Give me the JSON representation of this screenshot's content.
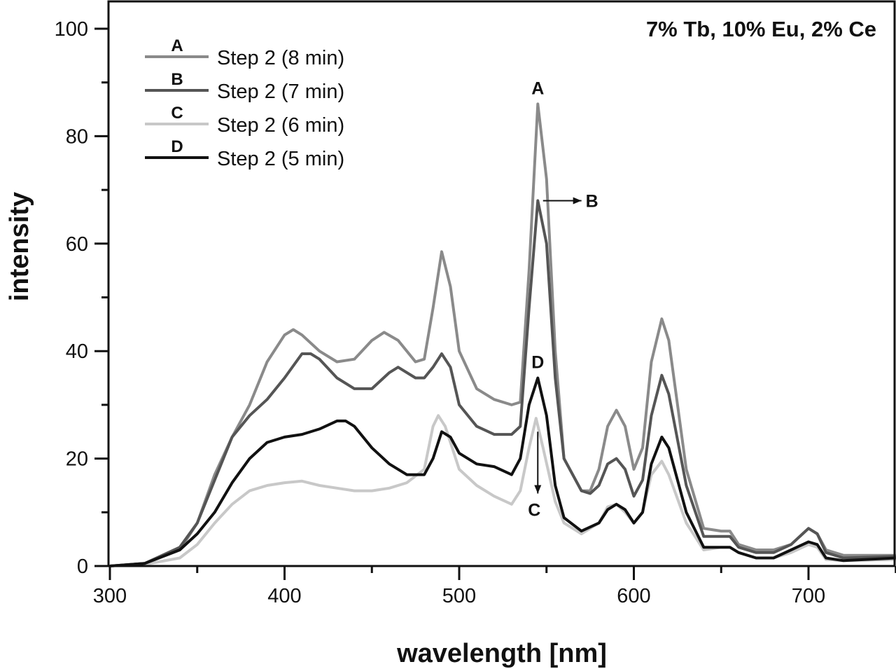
{
  "chart_data": {
    "type": "line",
    "title": "7% Tb, 10% Eu, 2% Ce",
    "xlabel": "wavelength [nm]",
    "ylabel": "intensity",
    "xlim": [
      300,
      750
    ],
    "ylim": [
      0,
      105
    ],
    "xticks": [
      "300",
      "400",
      "500",
      "600",
      "700"
    ],
    "yticks": [
      "0",
      "20",
      "40",
      "60",
      "80",
      "100"
    ],
    "grid": false,
    "legend_position": "top-left",
    "series": [
      {
        "letter": "A",
        "name": "Step 2 (8 min)",
        "color": "#8a8a8a",
        "points": [
          [
            300,
            0
          ],
          [
            320,
            0.5
          ],
          [
            340,
            3
          ],
          [
            350,
            8
          ],
          [
            360,
            17
          ],
          [
            370,
            24
          ],
          [
            380,
            30
          ],
          [
            390,
            38
          ],
          [
            400,
            43
          ],
          [
            405,
            44
          ],
          [
            410,
            43
          ],
          [
            420,
            40
          ],
          [
            430,
            38
          ],
          [
            440,
            38.5
          ],
          [
            450,
            42
          ],
          [
            457,
            43.5
          ],
          [
            465,
            42
          ],
          [
            475,
            38
          ],
          [
            480,
            38.5
          ],
          [
            485,
            48
          ],
          [
            490,
            58.5
          ],
          [
            495,
            52
          ],
          [
            500,
            40
          ],
          [
            510,
            33
          ],
          [
            520,
            31
          ],
          [
            530,
            30
          ],
          [
            535,
            30.5
          ],
          [
            540,
            55
          ],
          [
            545,
            86
          ],
          [
            550,
            72
          ],
          [
            555,
            40
          ],
          [
            560,
            20
          ],
          [
            570,
            14
          ],
          [
            575,
            14
          ],
          [
            580,
            18
          ],
          [
            585,
            26
          ],
          [
            590,
            29
          ],
          [
            595,
            26
          ],
          [
            600,
            18
          ],
          [
            605,
            22
          ],
          [
            610,
            38
          ],
          [
            616,
            46
          ],
          [
            620,
            42
          ],
          [
            630,
            18
          ],
          [
            640,
            7
          ],
          [
            650,
            6.5
          ],
          [
            655,
            6.5
          ],
          [
            660,
            4
          ],
          [
            670,
            3
          ],
          [
            680,
            3
          ],
          [
            690,
            4
          ],
          [
            700,
            7
          ],
          [
            705,
            6
          ],
          [
            710,
            3
          ],
          [
            720,
            2
          ],
          [
            750,
            2
          ]
        ]
      },
      {
        "letter": "B",
        "name": "Step 2 (7 min)",
        "color": "#555555",
        "points": [
          [
            300,
            0
          ],
          [
            320,
            0.5
          ],
          [
            340,
            3.5
          ],
          [
            350,
            8
          ],
          [
            360,
            16
          ],
          [
            370,
            24
          ],
          [
            380,
            28
          ],
          [
            390,
            31
          ],
          [
            400,
            35
          ],
          [
            410,
            39.5
          ],
          [
            415,
            39.5
          ],
          [
            420,
            38.5
          ],
          [
            430,
            35
          ],
          [
            440,
            33
          ],
          [
            450,
            33
          ],
          [
            460,
            36
          ],
          [
            465,
            37
          ],
          [
            475,
            35
          ],
          [
            480,
            35
          ],
          [
            485,
            37
          ],
          [
            490,
            39.5
          ],
          [
            495,
            37
          ],
          [
            500,
            30
          ],
          [
            510,
            26
          ],
          [
            520,
            24.5
          ],
          [
            530,
            24.5
          ],
          [
            535,
            26
          ],
          [
            540,
            48
          ],
          [
            545,
            68
          ],
          [
            550,
            60
          ],
          [
            555,
            35
          ],
          [
            560,
            20
          ],
          [
            570,
            14
          ],
          [
            575,
            13.5
          ],
          [
            580,
            15
          ],
          [
            585,
            19
          ],
          [
            590,
            20
          ],
          [
            595,
            18
          ],
          [
            600,
            13
          ],
          [
            605,
            16
          ],
          [
            610,
            28
          ],
          [
            616,
            35.5
          ],
          [
            620,
            32
          ],
          [
            630,
            15
          ],
          [
            640,
            5.5
          ],
          [
            650,
            5.5
          ],
          [
            655,
            5.5
          ],
          [
            660,
            3.5
          ],
          [
            670,
            2.5
          ],
          [
            680,
            2.5
          ],
          [
            690,
            4
          ],
          [
            700,
            7
          ],
          [
            705,
            6
          ],
          [
            710,
            2.5
          ],
          [
            720,
            1.5
          ],
          [
            750,
            1.8
          ]
        ]
      },
      {
        "letter": "C",
        "name": "Step 2 (6 min)",
        "color": "#c8c8c8",
        "points": [
          [
            300,
            0
          ],
          [
            320,
            0.3
          ],
          [
            340,
            1.5
          ],
          [
            350,
            4
          ],
          [
            360,
            8
          ],
          [
            370,
            11.5
          ],
          [
            380,
            14
          ],
          [
            390,
            15
          ],
          [
            400,
            15.5
          ],
          [
            410,
            15.8
          ],
          [
            420,
            15
          ],
          [
            430,
            14.5
          ],
          [
            440,
            14
          ],
          [
            450,
            14
          ],
          [
            460,
            14.5
          ],
          [
            470,
            15.5
          ],
          [
            480,
            18
          ],
          [
            485,
            26
          ],
          [
            488,
            28
          ],
          [
            492,
            26
          ],
          [
            500,
            18
          ],
          [
            510,
            15
          ],
          [
            520,
            13
          ],
          [
            530,
            11.5
          ],
          [
            535,
            14
          ],
          [
            540,
            22
          ],
          [
            544,
            27.5
          ],
          [
            548,
            22
          ],
          [
            555,
            12
          ],
          [
            560,
            8
          ],
          [
            570,
            6
          ],
          [
            580,
            8
          ],
          [
            585,
            11
          ],
          [
            590,
            11.5
          ],
          [
            595,
            10
          ],
          [
            600,
            8
          ],
          [
            605,
            10
          ],
          [
            610,
            17
          ],
          [
            616,
            19.5
          ],
          [
            620,
            17
          ],
          [
            630,
            8
          ],
          [
            640,
            3
          ],
          [
            650,
            3.5
          ],
          [
            655,
            3.5
          ],
          [
            660,
            2.5
          ],
          [
            670,
            1.5
          ],
          [
            680,
            1.5
          ],
          [
            690,
            2.5
          ],
          [
            700,
            4
          ],
          [
            705,
            3.5
          ],
          [
            710,
            1.2
          ],
          [
            720,
            1
          ],
          [
            750,
            1.2
          ]
        ]
      },
      {
        "letter": "D",
        "name": "Step 2 (5 min)",
        "color": "#111111",
        "points": [
          [
            300,
            0
          ],
          [
            320,
            0.5
          ],
          [
            340,
            3
          ],
          [
            350,
            6
          ],
          [
            360,
            10
          ],
          [
            370,
            15.5
          ],
          [
            380,
            20
          ],
          [
            390,
            23
          ],
          [
            400,
            24
          ],
          [
            410,
            24.5
          ],
          [
            420,
            25.5
          ],
          [
            430,
            27
          ],
          [
            435,
            27
          ],
          [
            440,
            26
          ],
          [
            450,
            22
          ],
          [
            460,
            19
          ],
          [
            470,
            17
          ],
          [
            480,
            17
          ],
          [
            485,
            20
          ],
          [
            490,
            25
          ],
          [
            495,
            24
          ],
          [
            500,
            21
          ],
          [
            510,
            19
          ],
          [
            520,
            18.5
          ],
          [
            530,
            17
          ],
          [
            535,
            20
          ],
          [
            540,
            30
          ],
          [
            545,
            35
          ],
          [
            550,
            28
          ],
          [
            555,
            15
          ],
          [
            560,
            9
          ],
          [
            570,
            6.5
          ],
          [
            580,
            8
          ],
          [
            585,
            10.5
          ],
          [
            590,
            11.5
          ],
          [
            595,
            10.5
          ],
          [
            600,
            8
          ],
          [
            605,
            10
          ],
          [
            610,
            19
          ],
          [
            616,
            24
          ],
          [
            620,
            22
          ],
          [
            630,
            10
          ],
          [
            640,
            3.5
          ],
          [
            650,
            3.5
          ],
          [
            655,
            3.5
          ],
          [
            660,
            2.5
          ],
          [
            670,
            1.5
          ],
          [
            680,
            1.5
          ],
          [
            690,
            3
          ],
          [
            700,
            4.5
          ],
          [
            705,
            4
          ],
          [
            710,
            1.5
          ],
          [
            720,
            1
          ],
          [
            750,
            1.5
          ]
        ]
      }
    ],
    "annotations": [
      {
        "text": "A",
        "x": 545,
        "y": 89
      },
      {
        "text": "B",
        "x": 576,
        "y": 68,
        "arrow_from": [
          548,
          68
        ],
        "arrow_to": [
          570,
          68
        ]
      },
      {
        "text": "D",
        "x": 545,
        "y": 38
      },
      {
        "text": "C",
        "x": 543,
        "y": 10.5,
        "arrow_from": [
          545,
          25
        ],
        "arrow_to": [
          545,
          13.5
        ]
      }
    ]
  }
}
